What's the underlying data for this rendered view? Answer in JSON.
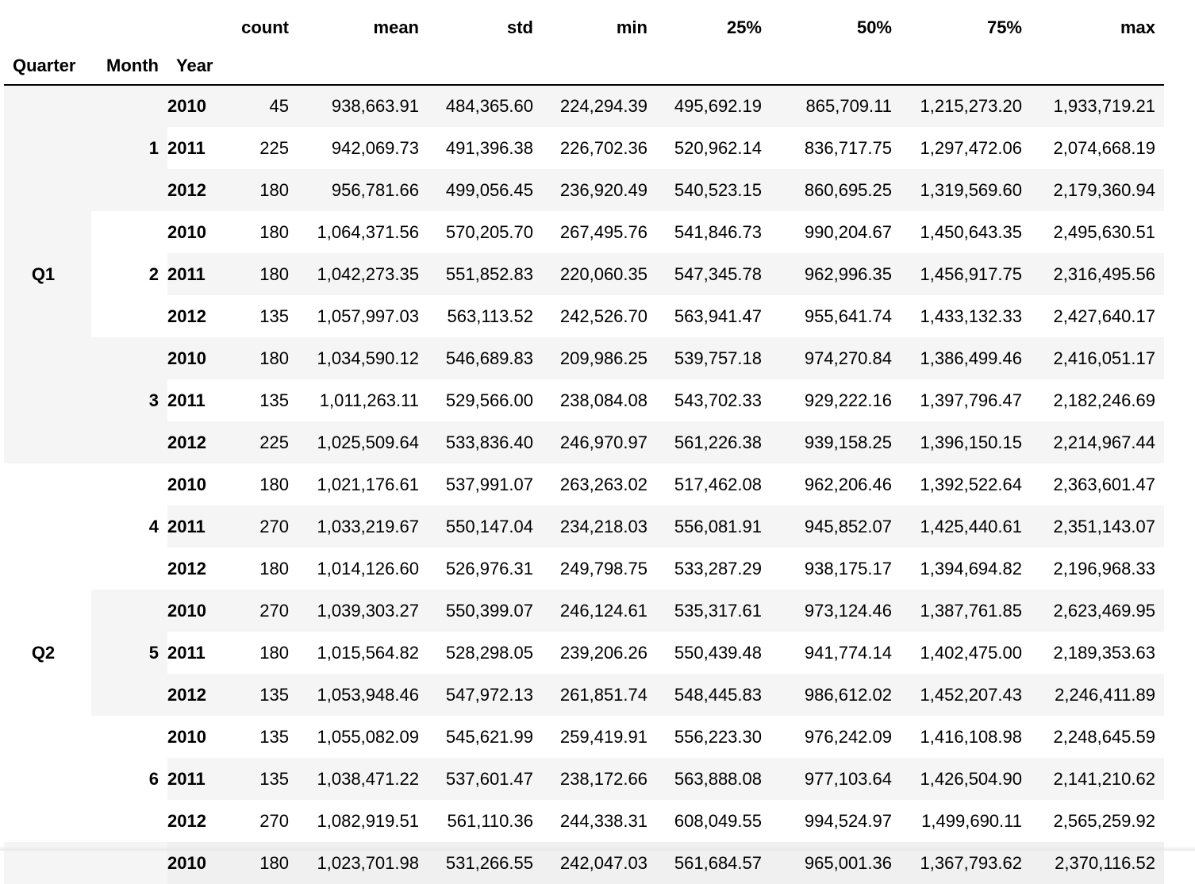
{
  "columns": [
    "count",
    "mean",
    "std",
    "min",
    "25%",
    "50%",
    "75%",
    "max"
  ],
  "index_names": {
    "quarter": "Quarter",
    "month": "Month",
    "year": "Year"
  },
  "rows": [
    {
      "quarter": "Q1",
      "month": "1",
      "year": "2010",
      "values": [
        "45",
        "938,663.91",
        "484,365.60",
        "224,294.39",
        "495,692.19",
        "865,709.11",
        "1,215,273.20",
        "1,933,719.21"
      ]
    },
    {
      "quarter": "Q1",
      "month": "1",
      "year": "2011",
      "values": [
        "225",
        "942,069.73",
        "491,396.38",
        "226,702.36",
        "520,962.14",
        "836,717.75",
        "1,297,472.06",
        "2,074,668.19"
      ]
    },
    {
      "quarter": "Q1",
      "month": "1",
      "year": "2012",
      "values": [
        "180",
        "956,781.66",
        "499,056.45",
        "236,920.49",
        "540,523.15",
        "860,695.25",
        "1,319,569.60",
        "2,179,360.94"
      ]
    },
    {
      "quarter": "Q1",
      "month": "2",
      "year": "2010",
      "values": [
        "180",
        "1,064,371.56",
        "570,205.70",
        "267,495.76",
        "541,846.73",
        "990,204.67",
        "1,450,643.35",
        "2,495,630.51"
      ]
    },
    {
      "quarter": "Q1",
      "month": "2",
      "year": "2011",
      "values": [
        "180",
        "1,042,273.35",
        "551,852.83",
        "220,060.35",
        "547,345.78",
        "962,996.35",
        "1,456,917.75",
        "2,316,495.56"
      ]
    },
    {
      "quarter": "Q1",
      "month": "2",
      "year": "2012",
      "values": [
        "135",
        "1,057,997.03",
        "563,113.52",
        "242,526.70",
        "563,941.47",
        "955,641.74",
        "1,433,132.33",
        "2,427,640.17"
      ]
    },
    {
      "quarter": "Q1",
      "month": "3",
      "year": "2010",
      "values": [
        "180",
        "1,034,590.12",
        "546,689.83",
        "209,986.25",
        "539,757.18",
        "974,270.84",
        "1,386,499.46",
        "2,416,051.17"
      ]
    },
    {
      "quarter": "Q1",
      "month": "3",
      "year": "2011",
      "values": [
        "135",
        "1,011,263.11",
        "529,566.00",
        "238,084.08",
        "543,702.33",
        "929,222.16",
        "1,397,796.47",
        "2,182,246.69"
      ]
    },
    {
      "quarter": "Q1",
      "month": "3",
      "year": "2012",
      "values": [
        "225",
        "1,025,509.64",
        "533,836.40",
        "246,970.97",
        "561,226.38",
        "939,158.25",
        "1,396,150.15",
        "2,214,967.44"
      ]
    },
    {
      "quarter": "Q2",
      "month": "4",
      "year": "2010",
      "values": [
        "180",
        "1,021,176.61",
        "537,991.07",
        "263,263.02",
        "517,462.08",
        "962,206.46",
        "1,392,522.64",
        "2,363,601.47"
      ]
    },
    {
      "quarter": "Q2",
      "month": "4",
      "year": "2011",
      "values": [
        "270",
        "1,033,219.67",
        "550,147.04",
        "234,218.03",
        "556,081.91",
        "945,852.07",
        "1,425,440.61",
        "2,351,143.07"
      ]
    },
    {
      "quarter": "Q2",
      "month": "4",
      "year": "2012",
      "values": [
        "180",
        "1,014,126.60",
        "526,976.31",
        "249,798.75",
        "533,287.29",
        "938,175.17",
        "1,394,694.82",
        "2,196,968.33"
      ]
    },
    {
      "quarter": "Q2",
      "month": "5",
      "year": "2010",
      "values": [
        "270",
        "1,039,303.27",
        "550,399.07",
        "246,124.61",
        "535,317.61",
        "973,124.46",
        "1,387,761.85",
        "2,623,469.95"
      ]
    },
    {
      "quarter": "Q2",
      "month": "5",
      "year": "2011",
      "values": [
        "180",
        "1,015,564.82",
        "528,298.05",
        "239,206.26",
        "550,439.48",
        "941,774.14",
        "1,402,475.00",
        "2,189,353.63"
      ]
    },
    {
      "quarter": "Q2",
      "month": "5",
      "year": "2012",
      "values": [
        "135",
        "1,053,948.46",
        "547,972.13",
        "261,851.74",
        "548,445.83",
        "986,612.02",
        "1,452,207.43",
        "2,246,411.89"
      ]
    },
    {
      "quarter": "Q2",
      "month": "6",
      "year": "2010",
      "values": [
        "135",
        "1,055,082.09",
        "545,621.99",
        "259,419.91",
        "556,223.30",
        "976,242.09",
        "1,416,108.98",
        "2,248,645.59"
      ]
    },
    {
      "quarter": "Q2",
      "month": "6",
      "year": "2011",
      "values": [
        "135",
        "1,038,471.22",
        "537,601.47",
        "238,172.66",
        "563,888.08",
        "977,103.64",
        "1,426,504.90",
        "2,141,210.62"
      ]
    },
    {
      "quarter": "Q2",
      "month": "6",
      "year": "2012",
      "values": [
        "270",
        "1,082,919.51",
        "561,110.36",
        "244,338.31",
        "608,049.55",
        "994,524.97",
        "1,499,690.11",
        "2,565,259.92"
      ]
    },
    {
      "quarter": "",
      "month": "",
      "year": "2010",
      "values": [
        "180",
        "1,023,701.98",
        "531,266.55",
        "242,047.03",
        "561,684.57",
        "965,001.36",
        "1,367,793.62",
        "2,370,116.52"
      ]
    }
  ]
}
